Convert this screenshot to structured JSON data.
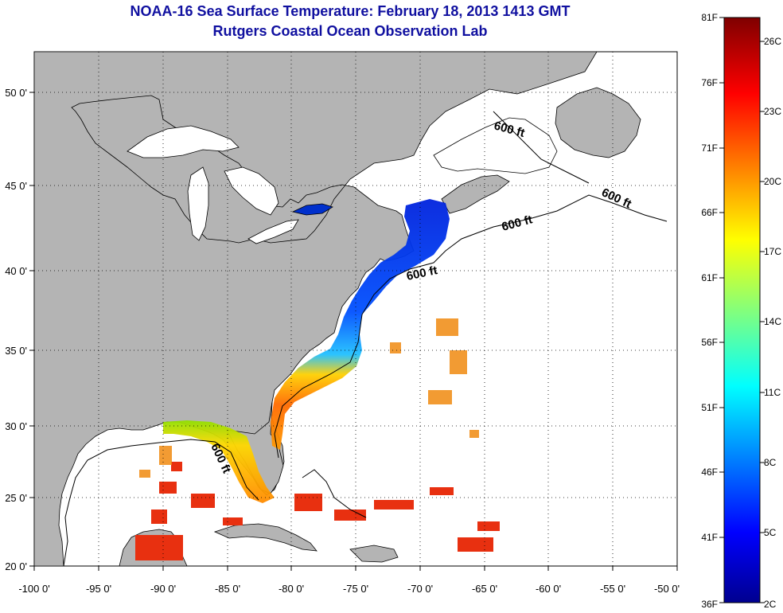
{
  "title": "NOAA-16 Sea Surface Temperature:  February 18, 2013 1413 GMT",
  "subtitle": "Rutgers Coastal Ocean Observation Lab",
  "map": {
    "lon_ticks": [
      "-100 0'",
      "-95 0'",
      "-90 0'",
      "-85 0'",
      "-80 0'",
      "-75 0'",
      "-70 0'",
      "-65 0'",
      "-60 0'",
      "-55 0'",
      "-50 0'"
    ],
    "lat_ticks": [
      "20 0'",
      "25 0'",
      "30 0'",
      "35 0'",
      "40 0'",
      "45 0'",
      "50 0'"
    ],
    "isobath_labels": [
      "600 ft",
      "600 ft",
      "600 ft",
      "600 ft",
      "600 ft"
    ],
    "colors": {
      "land": "#b4b4b4",
      "water": "#ffffff",
      "grid": "#000000",
      "title": "#1010a0"
    }
  },
  "colorbar": {
    "fahrenheit": [
      "81F",
      "76F",
      "71F",
      "66F",
      "61F",
      "56F",
      "51F",
      "46F",
      "41F",
      "36F"
    ],
    "celsius": [
      "26C",
      "23C",
      "20C",
      "17C",
      "14C",
      "11C",
      "8C",
      "5C",
      "2C"
    ],
    "colormap": "jet"
  }
}
